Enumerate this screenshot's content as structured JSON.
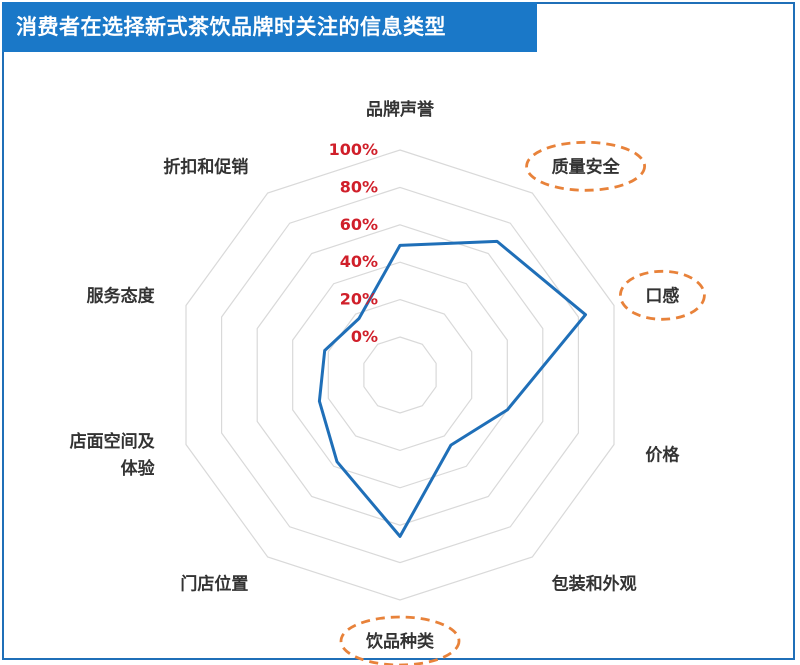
{
  "header": {
    "title": "消费者在选择新式茶饮品牌时关注的信息类型"
  },
  "chart_data": {
    "type": "radar",
    "title": "消费者在选择新式茶饮品牌时关注的信息类型",
    "axes": [
      "品牌声誉",
      "质量安全",
      "口感",
      "价格",
      "包装和外观",
      "饮品种类",
      "门店位置",
      "店面空间及体验",
      "服务态度",
      "折扣和促销"
    ],
    "axis_label_lines": [
      [
        "品牌声誉"
      ],
      [
        "质量安全"
      ],
      [
        "口感"
      ],
      [
        "价格"
      ],
      [
        "包装和外观"
      ],
      [
        "饮品种类"
      ],
      [
        "门店位置"
      ],
      [
        "店面空间及",
        "体验"
      ],
      [
        "服务态度"
      ],
      [
        "折扣和促销"
      ]
    ],
    "highlighted_axes": [
      "质量安全",
      "口感",
      "饮品种类"
    ],
    "series": [
      {
        "values": [
          49,
          68,
          84,
          40,
          26,
          66,
          37,
          25,
          22,
          17
        ]
      }
    ],
    "radial_ticks": [
      "0%",
      "20%",
      "40%",
      "60%",
      "80%",
      "100%"
    ],
    "range": [
      0,
      100
    ],
    "grid": true,
    "legend": "none",
    "colors": {
      "series": "#1f6fb8",
      "grid": "#d9d9d9",
      "tick": "#d01f2a",
      "highlight": "#e8823a",
      "title_bg": "#1a78c8"
    }
  }
}
